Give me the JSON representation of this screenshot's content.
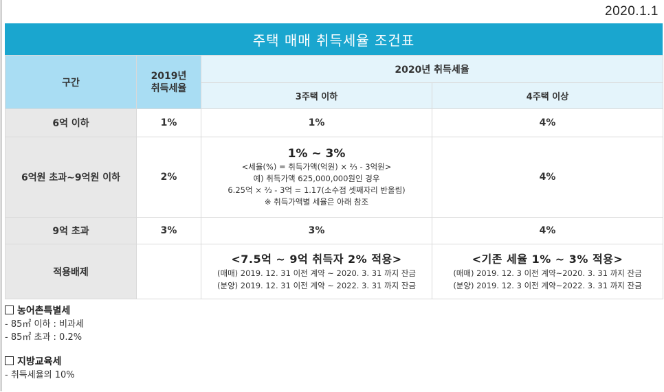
{
  "date": "2020.1.1",
  "title": "주택 매매 취득세율 조건표",
  "header": {
    "section": "구간",
    "y2019": "2019년\n취득세율",
    "y2020": "2020년 취득세율",
    "col_3house": "3주택 이하",
    "col_4house": "4주택 이상"
  },
  "rows": [
    {
      "label": "6억 이하",
      "y2019": "1%",
      "h3": "1%",
      "h4": "4%"
    },
    {
      "label": "6억원 초과~9억원 이하",
      "y2019": "2%",
      "h3_main": "1% ~ 3%",
      "h3_lines": [
        "<세율(%) = 취득가액(억원) × ⅔ - 3억원>",
        "예) 취득가액 625,000,000원인 경우",
        "6.25억 × ⅔ - 3억 = 1.17(소수점 셋째자리 반올림)",
        "※ 취득가액별 세율은 아래 참조"
      ],
      "h4": "4%"
    },
    {
      "label": "9억 초과",
      "y2019": "3%",
      "h3": "3%",
      "h4": "4%"
    },
    {
      "label": "적용배제",
      "y2019": "",
      "h3_main": "<7.5억 ~ 9억 취득자 2% 적용>",
      "h3_lines": [
        "(매매) 2019. 12. 31 이전 계약 ~ 2020. 3. 31 까지 잔금",
        "(분양) 2019. 12. 31 이전 계약 ~ 2022. 3. 31 까지 잔금"
      ],
      "h4_main": "<기존 세율 1% ~ 3% 적용>",
      "h4_lines": [
        "(매매) 2019. 12. 3 이전 계약~2020. 3. 31 까지 잔금",
        "(분양) 2019. 12. 3 이전 계약~2022. 3. 31 까지 잔금"
      ]
    }
  ],
  "notes": [
    {
      "title": "농어촌특별세",
      "items": [
        "- 85㎡ 이하 : 비과세",
        "- 85㎡ 초과 : 0.2%"
      ]
    },
    {
      "title": "지방교육세",
      "items": [
        "- 취득세율의 10%"
      ]
    }
  ]
}
